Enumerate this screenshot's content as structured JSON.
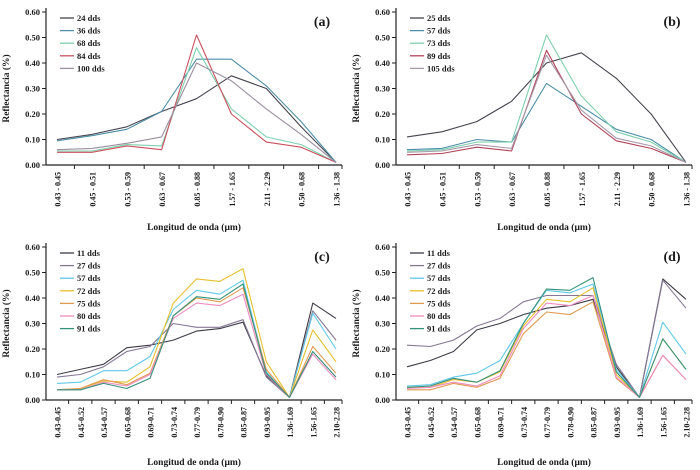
{
  "figure": {
    "xlabel": "Longitud de onda (μm)",
    "ylabel": "Reflectancia (%)"
  },
  "chart_data": [
    {
      "type": "line",
      "panel": "(a)",
      "xlabel": "Longitud de onda (μm)",
      "ylabel": "Reflectancia (%)",
      "ylim": [
        0,
        0.6
      ],
      "ytick_step": 0.1,
      "grid": false,
      "legend_position": "top-left",
      "categories": [
        "0.43 - 0.45",
        "0.45 - 0.51",
        "0.53 - 0.59",
        "0.63 - 0.67",
        "0.85 - 0.88",
        "1.57 - 1.65",
        "2.11 - 2.29",
        "0.50 - 0.68",
        "1.36 - 1.38"
      ],
      "series": [
        {
          "name": "24 dds",
          "color": "#45444f",
          "values": [
            0.1,
            0.12,
            0.15,
            0.21,
            0.26,
            0.35,
            0.3,
            0.15,
            0.01
          ]
        },
        {
          "name": "36 dds",
          "color": "#4e8ea6",
          "values": [
            0.095,
            0.115,
            0.14,
            0.21,
            0.415,
            0.415,
            0.31,
            0.17,
            0.01
          ]
        },
        {
          "name": "68 dds",
          "color": "#7ed0ae",
          "values": [
            0.055,
            0.055,
            0.08,
            0.075,
            0.46,
            0.22,
            0.11,
            0.08,
            0.01
          ]
        },
        {
          "name": "84 dds",
          "color": "#c9515e",
          "values": [
            0.05,
            0.05,
            0.075,
            0.06,
            0.51,
            0.2,
            0.09,
            0.07,
            0.01
          ]
        },
        {
          "name": "100 dds",
          "color": "#9b8fa0",
          "values": [
            0.06,
            0.065,
            0.085,
            0.11,
            0.4,
            0.33,
            0.22,
            0.12,
            0.01
          ]
        }
      ]
    },
    {
      "type": "line",
      "panel": "(b)",
      "xlabel": "Longitud de onda (μm)",
      "ylabel": "Reflectancia (%)",
      "ylim": [
        0,
        0.6
      ],
      "ytick_step": 0.1,
      "grid": false,
      "legend_position": "top-left",
      "categories": [
        "0.43 - 0.45",
        "0.45 - 0.51",
        "0.53 - 0.59",
        "0.63 - 0.67",
        "0.85 - 0.88",
        "1.57 - 1.65",
        "2.11 - 2.29",
        "0.50 - 0.68",
        "1.36 - 1.38"
      ],
      "series": [
        {
          "name": "25 dds",
          "color": "#45444f",
          "values": [
            0.11,
            0.13,
            0.17,
            0.25,
            0.4,
            0.44,
            0.34,
            0.2,
            0.01
          ]
        },
        {
          "name": "57 dds",
          "color": "#4e8ea6",
          "values": [
            0.06,
            0.065,
            0.1,
            0.09,
            0.32,
            0.23,
            0.14,
            0.1,
            0.01
          ]
        },
        {
          "name": "73 dds",
          "color": "#7ed0ae",
          "values": [
            0.055,
            0.06,
            0.09,
            0.09,
            0.51,
            0.27,
            0.13,
            0.09,
            0.01
          ]
        },
        {
          "name": "89 dds",
          "color": "#b04458",
          "values": [
            0.04,
            0.045,
            0.07,
            0.055,
            0.45,
            0.2,
            0.095,
            0.065,
            0.01
          ]
        },
        {
          "name": "105 dds",
          "color": "#a79aab",
          "values": [
            0.05,
            0.055,
            0.08,
            0.065,
            0.43,
            0.215,
            0.105,
            0.075,
            0.01
          ]
        }
      ]
    },
    {
      "type": "line",
      "panel": "(c)",
      "xlabel": "Longitud de onda (μm)",
      "ylabel": "Reflectancia (%)",
      "ylim": [
        0,
        0.6
      ],
      "ytick_step": 0.1,
      "grid": false,
      "legend_position": "top-left",
      "categories": [
        "0.43-0.45",
        "0.45-0.52",
        "0.54-0.57",
        "0.65-0.68",
        "0.69-0.71",
        "0.73-0.74",
        "0.77-0.79",
        "0.78-0.90",
        "0.85-0.87",
        "0.93-0.95",
        "1.36-1.69",
        "1.56-1.65",
        "2.10-2.28"
      ],
      "series": [
        {
          "name": "11 dds",
          "color": "#3c3b47",
          "values": [
            0.1,
            0.12,
            0.14,
            0.205,
            0.215,
            0.235,
            0.27,
            0.28,
            0.305,
            0.095,
            0.01,
            0.38,
            0.32
          ]
        },
        {
          "name": "27 dds",
          "color": "#867894",
          "values": [
            0.09,
            0.1,
            0.13,
            0.19,
            0.21,
            0.3,
            0.285,
            0.285,
            0.315,
            0.09,
            0.01,
            0.35,
            0.235
          ]
        },
        {
          "name": "57 dds",
          "color": "#62c8e8",
          "values": [
            0.065,
            0.07,
            0.115,
            0.115,
            0.17,
            0.355,
            0.43,
            0.415,
            0.47,
            0.11,
            0.01,
            0.34,
            0.2
          ]
        },
        {
          "name": "72 dds",
          "color": "#e6bf2e",
          "values": [
            0.04,
            0.045,
            0.075,
            0.07,
            0.13,
            0.38,
            0.475,
            0.465,
            0.515,
            0.15,
            0.01,
            0.275,
            0.15
          ]
        },
        {
          "name": "75 dds",
          "color": "#e09a50",
          "values": [
            0.04,
            0.045,
            0.08,
            0.06,
            0.105,
            0.33,
            0.4,
            0.385,
            0.44,
            0.12,
            0.01,
            0.21,
            0.105
          ]
        },
        {
          "name": "80 dds",
          "color": "#ee8cc0",
          "values": [
            0.04,
            0.04,
            0.07,
            0.055,
            0.1,
            0.32,
            0.38,
            0.37,
            0.415,
            0.1,
            0.01,
            0.18,
            0.08
          ]
        },
        {
          "name": "91 dds",
          "color": "#35917c",
          "values": [
            0.04,
            0.04,
            0.065,
            0.045,
            0.085,
            0.33,
            0.405,
            0.395,
            0.455,
            0.105,
            0.01,
            0.19,
            0.09
          ]
        }
      ]
    },
    {
      "type": "line",
      "panel": "(d)",
      "xlabel": "Longitud de onda (μm)",
      "ylabel": "Reflectancia (%)",
      "ylim": [
        0,
        0.6
      ],
      "ytick_step": 0.1,
      "grid": false,
      "legend_position": "top-left",
      "categories": [
        "0.43-0.45",
        "0.45-0.52",
        "0.54-0.57",
        "0.65-0.68",
        "0.69-0.71",
        "0.73-0.74",
        "0.77-0.79",
        "0.78-0.90",
        "0.85-0.87",
        "0.93-0.95",
        "1.36-1.69",
        "1.56-1.65",
        "2.10-2.28"
      ],
      "series": [
        {
          "name": "11 dds",
          "color": "#3c3b47",
          "values": [
            0.13,
            0.155,
            0.19,
            0.275,
            0.3,
            0.335,
            0.36,
            0.37,
            0.395,
            0.13,
            0.01,
            0.475,
            0.395
          ]
        },
        {
          "name": "27 dds",
          "color": "#867894",
          "values": [
            0.215,
            0.21,
            0.235,
            0.29,
            0.32,
            0.385,
            0.41,
            0.41,
            0.41,
            0.14,
            0.01,
            0.47,
            0.36
          ]
        },
        {
          "name": "57 dds",
          "color": "#62c8e8",
          "values": [
            0.055,
            0.06,
            0.09,
            0.105,
            0.155,
            0.3,
            0.43,
            0.42,
            0.455,
            0.12,
            0.01,
            0.305,
            0.18
          ]
        },
        {
          "name": "72 dds",
          "color": "#e6bf2e",
          "values": [
            0.05,
            0.05,
            0.08,
            0.07,
            0.11,
            0.29,
            0.395,
            0.385,
            0.44,
            0.1,
            0.01,
            0.24,
            0.12
          ]
        },
        {
          "name": "75 dds",
          "color": "#e09a50",
          "values": [
            0.04,
            0.04,
            0.065,
            0.05,
            0.085,
            0.26,
            0.345,
            0.335,
            0.385,
            0.085,
            0.01,
            0.175,
            0.08
          ]
        },
        {
          "name": "80 dds",
          "color": "#ee8cc0",
          "values": [
            0.045,
            0.05,
            0.07,
            0.055,
            0.095,
            0.28,
            0.38,
            0.37,
            0.41,
            0.09,
            0.01,
            0.175,
            0.08
          ]
        },
        {
          "name": "91 dds",
          "color": "#35917c",
          "values": [
            0.05,
            0.055,
            0.085,
            0.07,
            0.115,
            0.3,
            0.435,
            0.43,
            0.48,
            0.11,
            0.01,
            0.24,
            0.12
          ]
        }
      ]
    }
  ]
}
